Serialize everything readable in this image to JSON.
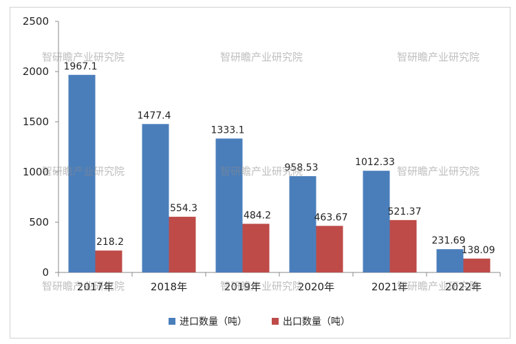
{
  "chart_data": {
    "type": "bar",
    "categories": [
      "2017年",
      "2018年",
      "2019年",
      "2020年",
      "2021年",
      "2022年"
    ],
    "series": [
      {
        "name": "进口数量（吨）",
        "values": [
          1967.1,
          1477.4,
          1333.1,
          958.53,
          1012.33,
          231.69
        ],
        "color": "#4a7ebb"
      },
      {
        "name": "出口数量（吨）",
        "values": [
          218.2,
          554.3,
          484.2,
          463.67,
          521.37,
          138.09
        ],
        "color": "#be4b48"
      }
    ],
    "value_labels": [
      [
        "1967.1",
        "1477.4",
        "1333.1",
        "958.53",
        "1012.33",
        "231.69"
      ],
      [
        "218.2",
        "554.3",
        "484.2",
        "463.67",
        "521.37",
        "138.09"
      ]
    ],
    "yticks": [
      "0",
      "500",
      "1000",
      "1500",
      "2000",
      "2500"
    ],
    "ylim": [
      0,
      2500
    ],
    "grid": false,
    "legend_position": "bottom",
    "title": "",
    "xlabel": "",
    "ylabel": ""
  },
  "watermark": "智研瞻产业研究院"
}
